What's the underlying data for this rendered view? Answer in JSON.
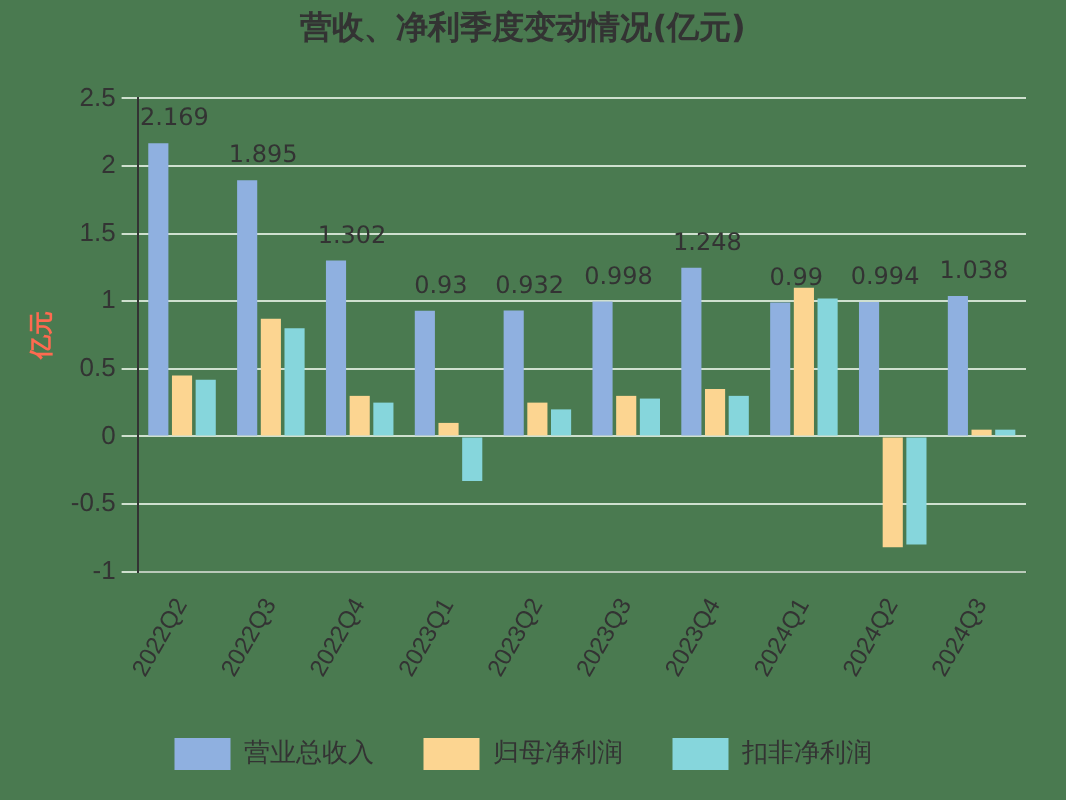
{
  "chart_data": {
    "type": "bar",
    "title": "营收、净利季度变动情况(亿元)",
    "ylabel": "亿元",
    "categories": [
      "2022Q2",
      "2022Q3",
      "2022Q4",
      "2023Q1",
      "2023Q2",
      "2023Q3",
      "2023Q4",
      "2024Q1",
      "2024Q2",
      "2024Q3"
    ],
    "series": [
      {
        "name": "营业总收入",
        "color": "#8fb0e0",
        "values": [
          2.169,
          1.895,
          1.302,
          0.93,
          0.932,
          0.998,
          1.248,
          0.99,
          0.994,
          1.038
        ],
        "value_labels": [
          "2.169",
          "1.895",
          "1.302",
          "0.93",
          "0.932",
          "0.998",
          "1.248",
          "0.99",
          "0.994",
          "1.038"
        ]
      },
      {
        "name": "归母净利润",
        "color": "#fcd591",
        "values": [
          0.45,
          0.87,
          0.3,
          0.1,
          0.25,
          0.3,
          0.35,
          1.1,
          -0.82,
          0.05
        ]
      },
      {
        "name": "扣非净利润",
        "color": "#86d6dc",
        "values": [
          0.42,
          0.8,
          0.25,
          -0.33,
          0.2,
          0.28,
          0.3,
          1.02,
          -0.8,
          0.05
        ]
      }
    ],
    "ylim": [
      -1,
      2.5
    ],
    "yticks": [
      -1,
      -0.5,
      0,
      0.5,
      1,
      1.5,
      2,
      2.5
    ],
    "grid": "y",
    "legend": "bottom"
  }
}
